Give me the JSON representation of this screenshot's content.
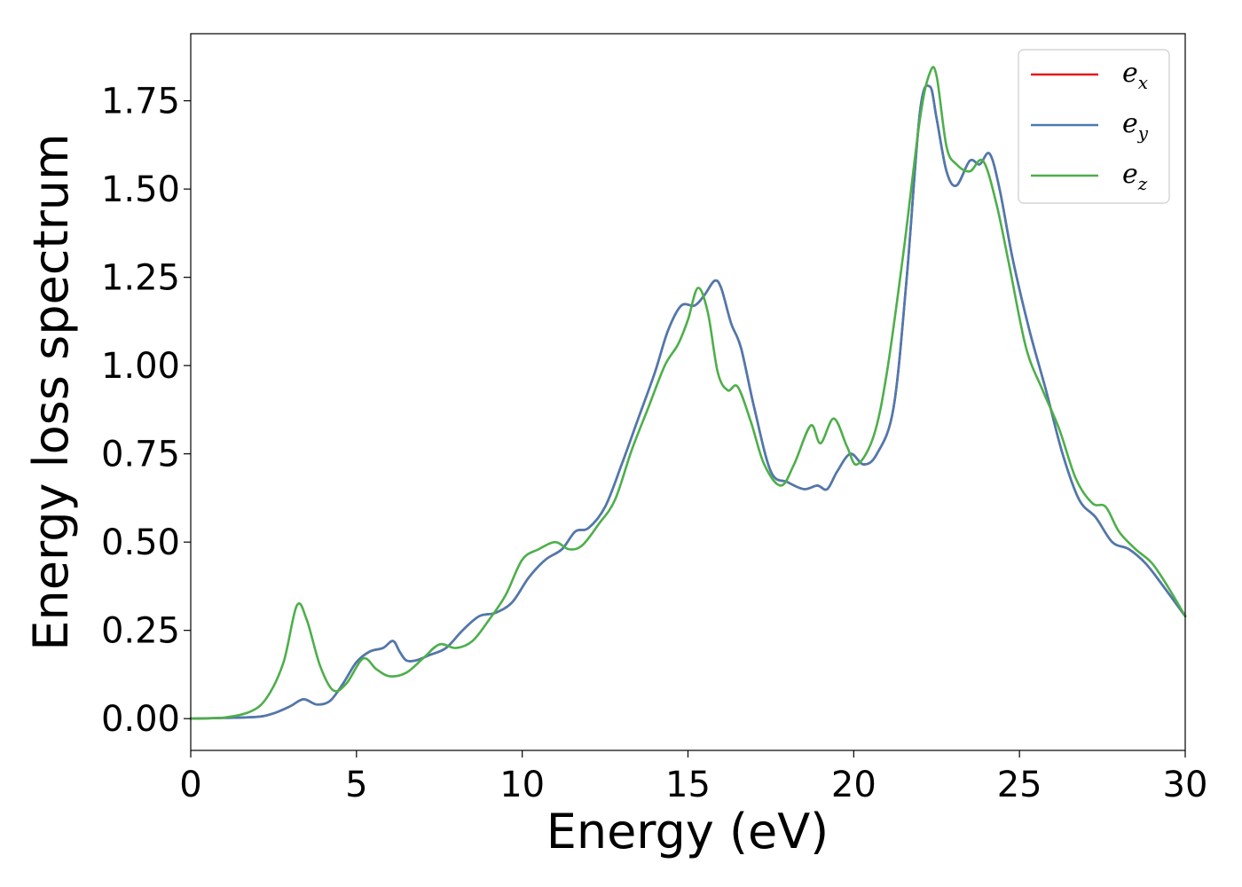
{
  "chart_data": {
    "type": "line",
    "xlabel": "Energy (eV)",
    "ylabel": "Energy loss spectrum",
    "xlim": [
      0,
      30
    ],
    "ylim": [
      -0.09,
      1.94
    ],
    "xticks": [
      0,
      5,
      10,
      15,
      20,
      25,
      30
    ],
    "yticks": [
      0.0,
      0.25,
      0.5,
      0.75,
      1.0,
      1.25,
      1.5,
      1.75
    ],
    "xtick_labels": [
      "0",
      "5",
      "10",
      "15",
      "20",
      "25",
      "30"
    ],
    "ytick_labels": [
      "0.00",
      "0.25",
      "0.50",
      "0.75",
      "1.00",
      "1.25",
      "1.50",
      "1.75"
    ],
    "grid": false,
    "legend_position": "top-right",
    "series": [
      {
        "name": "e_x",
        "legend_base": "e",
        "legend_sub": "x",
        "color": "#e41a1c",
        "x": [
          0,
          1,
          2,
          2.5,
          3,
          3.4,
          3.8,
          4.2,
          4.6,
          5,
          5.4,
          5.8,
          6.1,
          6.3,
          6.5,
          6.8,
          7.2,
          7.7,
          8.2,
          8.7,
          9.2,
          9.7,
          10.2,
          10.7,
          11.2,
          11.6,
          12.0,
          12.5,
          13.0,
          13.5,
          14.0,
          14.4,
          14.8,
          15.2,
          15.5,
          15.8,
          16.0,
          16.3,
          16.6,
          17.0,
          17.5,
          18.0,
          18.5,
          18.9,
          19.2,
          19.5,
          19.9,
          20.3,
          20.7,
          21.2,
          21.6,
          22.0,
          22.3,
          22.5,
          22.8,
          23.1,
          23.5,
          23.8,
          24.1,
          24.4,
          24.8,
          25.3,
          25.8,
          26.3,
          26.8,
          27.3,
          27.8,
          28.3,
          28.8,
          29.3,
          30.0
        ],
        "y": [
          0.0,
          0.002,
          0.005,
          0.015,
          0.035,
          0.055,
          0.04,
          0.05,
          0.1,
          0.16,
          0.19,
          0.2,
          0.22,
          0.19,
          0.165,
          0.165,
          0.18,
          0.2,
          0.25,
          0.29,
          0.3,
          0.33,
          0.4,
          0.45,
          0.48,
          0.53,
          0.54,
          0.6,
          0.72,
          0.85,
          0.98,
          1.1,
          1.17,
          1.17,
          1.2,
          1.24,
          1.22,
          1.12,
          1.05,
          0.88,
          0.7,
          0.67,
          0.65,
          0.66,
          0.65,
          0.7,
          0.75,
          0.72,
          0.75,
          0.88,
          1.25,
          1.72,
          1.79,
          1.7,
          1.55,
          1.51,
          1.58,
          1.57,
          1.6,
          1.5,
          1.3,
          1.1,
          0.93,
          0.75,
          0.62,
          0.57,
          0.5,
          0.48,
          0.44,
          0.38,
          0.29
        ]
      },
      {
        "name": "e_y",
        "legend_base": "e",
        "legend_sub": "y",
        "color": "#4a7bb0",
        "x": [
          0,
          1,
          2,
          2.5,
          3,
          3.4,
          3.8,
          4.2,
          4.6,
          5,
          5.4,
          5.8,
          6.1,
          6.3,
          6.5,
          6.8,
          7.2,
          7.7,
          8.2,
          8.7,
          9.2,
          9.7,
          10.2,
          10.7,
          11.2,
          11.6,
          12.0,
          12.5,
          13.0,
          13.5,
          14.0,
          14.4,
          14.8,
          15.2,
          15.5,
          15.8,
          16.0,
          16.3,
          16.6,
          17.0,
          17.5,
          18.0,
          18.5,
          18.9,
          19.2,
          19.5,
          19.9,
          20.3,
          20.7,
          21.2,
          21.6,
          22.0,
          22.3,
          22.5,
          22.8,
          23.1,
          23.5,
          23.8,
          24.1,
          24.4,
          24.8,
          25.3,
          25.8,
          26.3,
          26.8,
          27.3,
          27.8,
          28.3,
          28.8,
          29.3,
          30.0
        ],
        "y": [
          0.0,
          0.002,
          0.005,
          0.015,
          0.035,
          0.055,
          0.04,
          0.05,
          0.1,
          0.16,
          0.19,
          0.2,
          0.22,
          0.19,
          0.165,
          0.165,
          0.18,
          0.2,
          0.25,
          0.29,
          0.3,
          0.33,
          0.4,
          0.45,
          0.48,
          0.53,
          0.54,
          0.6,
          0.72,
          0.85,
          0.98,
          1.1,
          1.17,
          1.17,
          1.2,
          1.24,
          1.22,
          1.12,
          1.05,
          0.88,
          0.7,
          0.67,
          0.65,
          0.66,
          0.65,
          0.7,
          0.75,
          0.72,
          0.75,
          0.88,
          1.25,
          1.72,
          1.79,
          1.7,
          1.55,
          1.51,
          1.58,
          1.57,
          1.6,
          1.5,
          1.3,
          1.1,
          0.93,
          0.75,
          0.62,
          0.57,
          0.5,
          0.48,
          0.44,
          0.38,
          0.29
        ]
      },
      {
        "name": "e_z",
        "legend_base": "e",
        "legend_sub": "z",
        "color": "#4daf4a",
        "x": [
          0,
          1,
          1.8,
          2.3,
          2.8,
          3.2,
          3.5,
          3.9,
          4.3,
          4.7,
          5.2,
          5.6,
          6.0,
          6.5,
          7.0,
          7.5,
          8.0,
          8.5,
          9.0,
          9.5,
          10.0,
          10.5,
          11.0,
          11.4,
          11.8,
          12.3,
          12.8,
          13.3,
          13.8,
          14.3,
          14.7,
          15.0,
          15.3,
          15.6,
          15.9,
          16.2,
          16.5,
          16.9,
          17.3,
          17.8,
          18.2,
          18.7,
          19.0,
          19.4,
          19.8,
          20.1,
          20.6,
          21.0,
          21.5,
          22.0,
          22.3,
          22.5,
          22.8,
          23.1,
          23.5,
          23.9,
          24.3,
          24.7,
          25.2,
          25.7,
          26.2,
          26.7,
          27.2,
          27.6,
          28.0,
          28.5,
          29.0,
          29.5,
          30.0
        ],
        "y": [
          0.0,
          0.003,
          0.02,
          0.06,
          0.16,
          0.32,
          0.28,
          0.15,
          0.08,
          0.1,
          0.17,
          0.14,
          0.12,
          0.13,
          0.17,
          0.21,
          0.2,
          0.22,
          0.28,
          0.35,
          0.45,
          0.48,
          0.5,
          0.48,
          0.49,
          0.55,
          0.62,
          0.76,
          0.88,
          1.0,
          1.06,
          1.13,
          1.22,
          1.15,
          0.98,
          0.93,
          0.94,
          0.84,
          0.72,
          0.66,
          0.72,
          0.83,
          0.78,
          0.85,
          0.77,
          0.72,
          0.8,
          0.98,
          1.32,
          1.7,
          1.83,
          1.82,
          1.62,
          1.57,
          1.55,
          1.58,
          1.46,
          1.28,
          1.05,
          0.93,
          0.82,
          0.68,
          0.61,
          0.6,
          0.53,
          0.48,
          0.44,
          0.37,
          0.29
        ]
      }
    ]
  }
}
